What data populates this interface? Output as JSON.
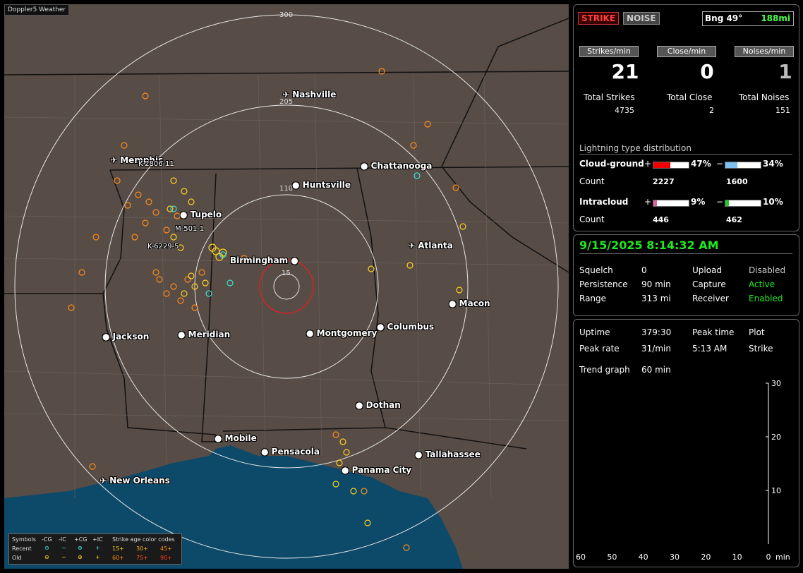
{
  "app": {
    "title": "Doppler5 Weather"
  },
  "colors": {
    "map_land": "#574c46",
    "ocean": "#0d4a6a",
    "ring": "#e6e6e6",
    "close_ring": "#d22",
    "recent_ic": "#ff8c1a",
    "old_cg": "#ffd21f",
    "cyan": "#3fe0d0"
  },
  "map": {
    "ring_labels": [
      "300",
      "205",
      "110",
      "15"
    ],
    "cities": [
      "Nashville",
      "Memphis",
      "Chattanooga",
      "Huntsville",
      "Tupelo",
      "Birmingham",
      "Atlanta",
      "Macon",
      "Jackson",
      "Meridian",
      "Montgomery",
      "Columbus",
      "Dothan",
      "Mobile",
      "Pensacola",
      "Tallahassee",
      "Panama City",
      "New Orleans"
    ],
    "station_labels": [
      "K-2806-11",
      "M-501-1",
      "K-6229-5"
    ]
  },
  "legend": {
    "title_symbols": "Symbols",
    "cols": [
      "-CG",
      "-IC",
      "+CG",
      "+IC"
    ],
    "title_age": "Strike age color codes",
    "recent": "Recent",
    "old": "Old",
    "recent_ages": [
      "15+",
      "30+",
      "45+"
    ],
    "old_ages": [
      "60+",
      "75+",
      "90+"
    ]
  },
  "header": {
    "strike_btn": "STRIKE",
    "noise_btn": "NOISE",
    "bearing": "Bng 49°",
    "distance": "188mi"
  },
  "rates": {
    "strikes_label": "Strikes/min",
    "close_label": "Close/min",
    "noises_label": "Noises/min",
    "strikes": "21",
    "close": "0",
    "noises": "1",
    "total_strikes_label": "Total Strikes",
    "total_close_label": "Total Close",
    "total_noises_label": "Total Noises",
    "total_strikes": "4735",
    "total_close": "2",
    "total_noises": "151"
  },
  "distribution": {
    "title": "Lightning type distribution",
    "cg_label": "Cloud-ground",
    "ic_label": "Intracloud",
    "count_label": "Count",
    "plus": "+",
    "minus": "−",
    "cg_pos_pct": "47%",
    "cg_neg_pct": "34%",
    "cg_pos_count": "2227",
    "cg_neg_count": "1600",
    "ic_pos_pct": "9%",
    "ic_neg_pct": "10%",
    "ic_pos_count": "446",
    "ic_neg_count": "462",
    "cg_pos_frac": 0.47,
    "cg_neg_frac": 0.34,
    "ic_pos_frac": 0.09,
    "ic_neg_frac": 0.1
  },
  "status": {
    "datetime": "9/15/2025 8:14:32 AM",
    "squelch_label": "Squelch",
    "squelch": "0",
    "persistence_label": "Persistence",
    "persistence": "90 min",
    "range_label": "Range",
    "range": "313 mi",
    "upload_label": "Upload",
    "upload": "Disabled",
    "capture_label": "Capture",
    "capture": "Active",
    "receiver_label": "Receiver",
    "receiver": "Enabled"
  },
  "stats": {
    "uptime_label": "Uptime",
    "uptime": "379:30",
    "peak_time_label": "Peak time",
    "peak_time": "5:13 AM",
    "plot_label": "Plot",
    "plot": "Strike",
    "peak_rate_label": "Peak rate",
    "peak_rate": "31/min",
    "trend_label": "Trend graph",
    "trend": "60 min"
  },
  "chart_data": {
    "type": "line",
    "x_ticks": [
      "60",
      "50",
      "40",
      "30",
      "20",
      "10",
      "0"
    ],
    "x_unit": "min",
    "y_ticks": [
      "30",
      "20",
      "10"
    ],
    "ylim": [
      0,
      30
    ]
  }
}
